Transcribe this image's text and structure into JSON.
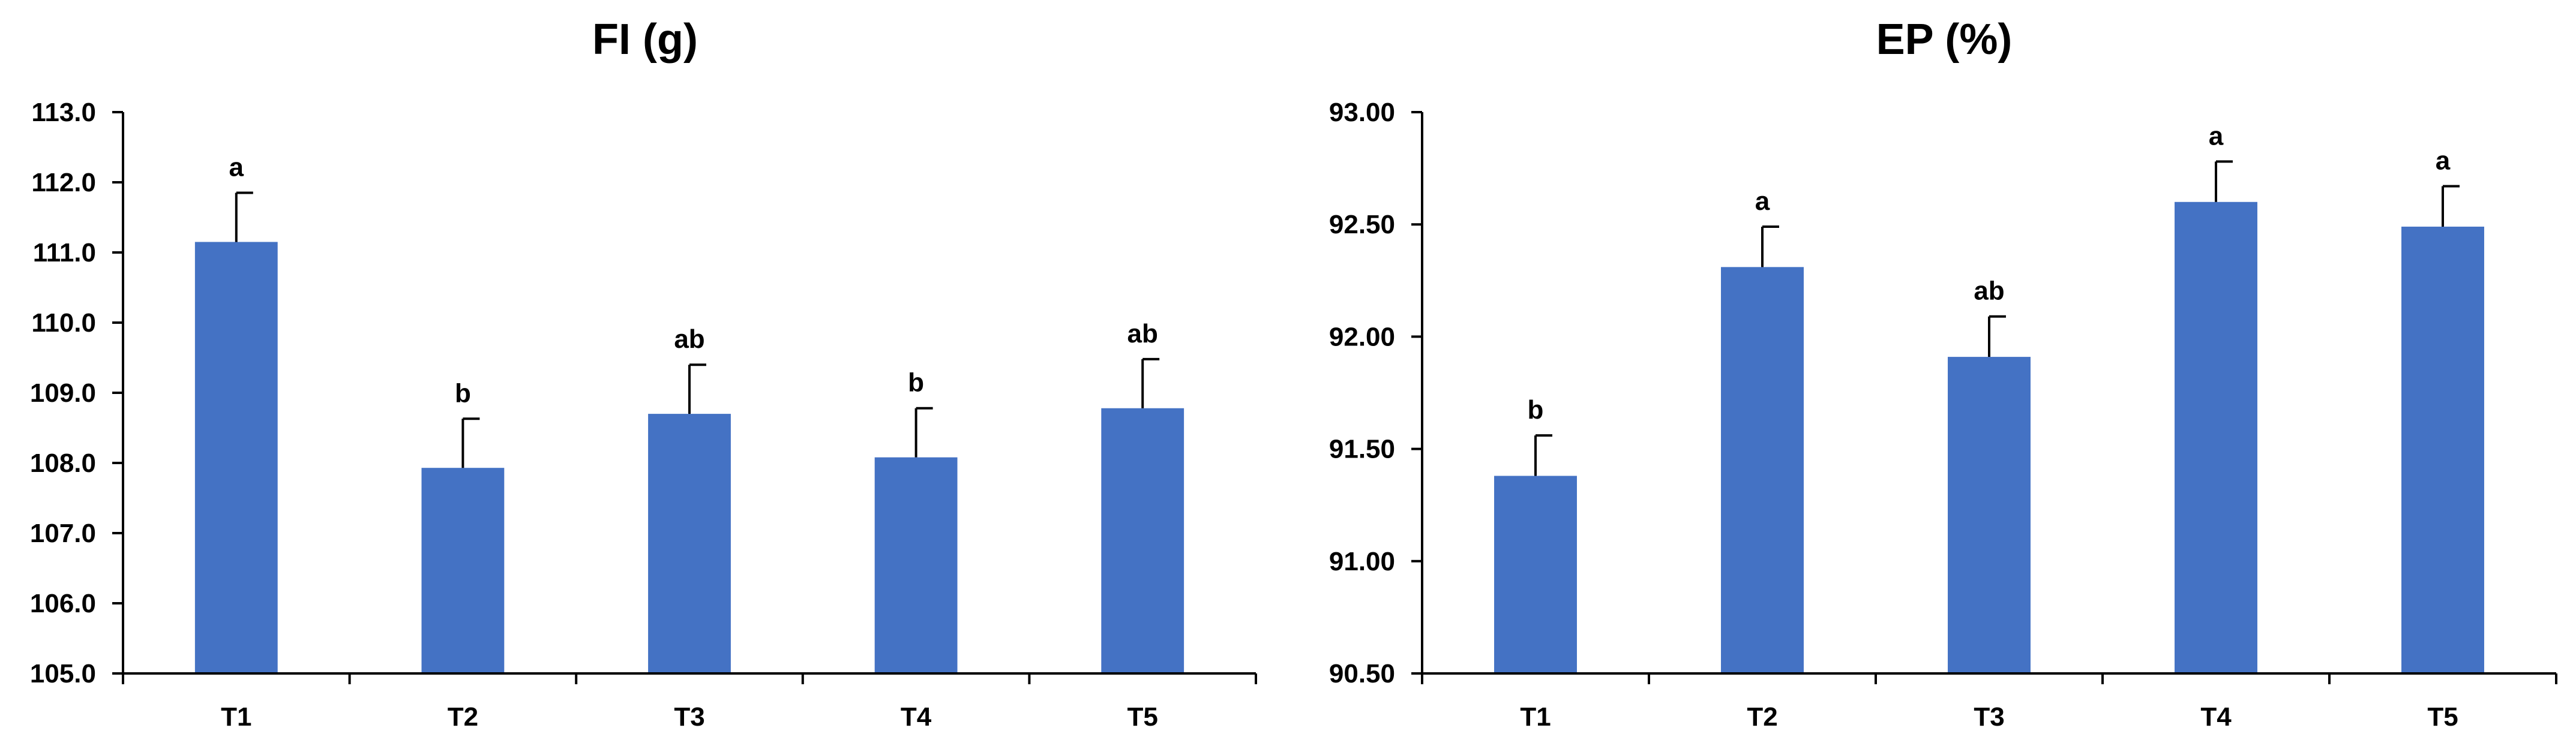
{
  "chart_data": [
    {
      "type": "bar",
      "title": "FI (g)",
      "xlabel": "",
      "ylabel": "",
      "ylim": [
        105.0,
        113.0
      ],
      "ytick_step": 1.0,
      "ytick_decimals": 1,
      "grid": false,
      "color": "#4472C4",
      "categories": [
        "T1",
        "T2",
        "T3",
        "T4",
        "T5"
      ],
      "values": [
        111.15,
        107.93,
        108.7,
        108.08,
        108.78
      ],
      "errors": [
        0.7,
        0.7,
        0.7,
        0.7,
        0.7
      ],
      "significance": [
        "a",
        "b",
        "ab",
        "b",
        "ab"
      ]
    },
    {
      "type": "bar",
      "title": "EP (%)",
      "xlabel": "",
      "ylabel": "",
      "ylim": [
        90.5,
        93.0
      ],
      "ytick_step": 0.5,
      "ytick_decimals": 2,
      "grid": false,
      "color": "#4472C4",
      "categories": [
        "T1",
        "T2",
        "T3",
        "T4",
        "T5"
      ],
      "values": [
        91.38,
        92.31,
        91.91,
        92.6,
        92.49
      ],
      "errors": [
        0.18,
        0.18,
        0.18,
        0.18,
        0.18
      ],
      "significance": [
        "b",
        "a",
        "ab",
        "a",
        "a"
      ]
    }
  ]
}
